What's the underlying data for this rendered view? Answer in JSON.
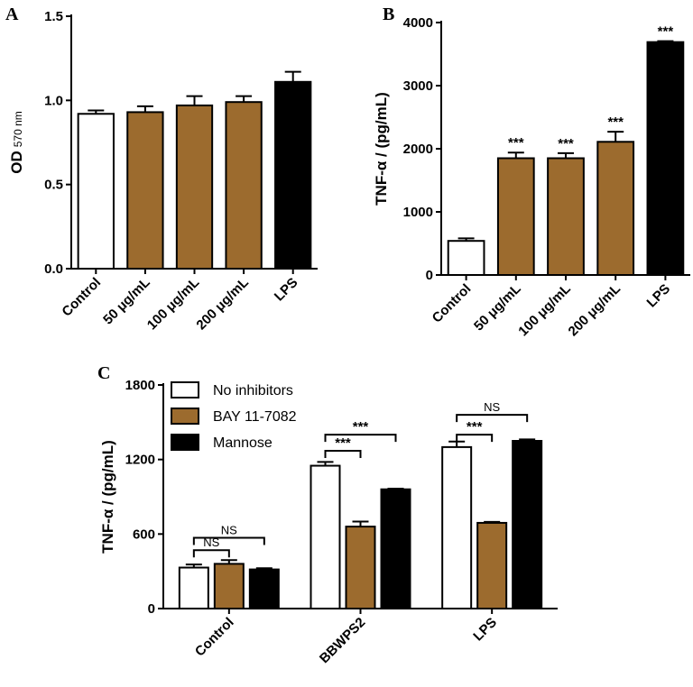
{
  "colors": {
    "white_fill": "#ffffff",
    "brown_fill": "#9c6b2e",
    "black_fill": "#000000",
    "stroke": "#000000"
  },
  "chart_data": [
    {
      "panel": "A",
      "type": "bar",
      "ylabel": "OD",
      "ylabel_sub": "570 nm",
      "ylim": [
        0,
        1.5
      ],
      "yticks": [
        0.0,
        0.5,
        1.0,
        1.5
      ],
      "ytick_labels": [
        "0.0",
        "0.5",
        "1.0",
        "1.5"
      ],
      "categories": [
        "Control",
        "50 μg/mL",
        "100 μg/mL",
        "200 μg/mL",
        "LPS"
      ],
      "values": [
        0.92,
        0.93,
        0.97,
        0.99,
        1.11
      ],
      "errors": [
        0.02,
        0.035,
        0.055,
        0.035,
        0.06
      ],
      "fills": [
        "white",
        "brown",
        "brown",
        "brown",
        "black"
      ],
      "annotations": [
        "",
        "",
        "",
        "",
        ""
      ]
    },
    {
      "panel": "B",
      "type": "bar",
      "ylabel": "TNF-α / (pg/mL)",
      "ylim": [
        0,
        4000
      ],
      "yticks": [
        0,
        1000,
        2000,
        3000,
        4000
      ],
      "ytick_labels": [
        "0",
        "1000",
        "2000",
        "3000",
        "4000"
      ],
      "categories": [
        "Control",
        "50 μg/mL",
        "100 μg/mL",
        "200 μg/mL",
        "LPS"
      ],
      "values": [
        540,
        1850,
        1850,
        2110,
        3690
      ],
      "errors": [
        40,
        90,
        80,
        160,
        15
      ],
      "fills": [
        "white",
        "brown",
        "brown",
        "brown",
        "black"
      ],
      "annotations": [
        "",
        "***",
        "***",
        "***",
        "***"
      ]
    },
    {
      "panel": "C",
      "type": "bar",
      "ylabel": "TNF-α / (pg/mL)",
      "ylim": [
        0,
        1800
      ],
      "yticks": [
        0,
        600,
        1200,
        1800
      ],
      "ytick_labels": [
        "0",
        "600",
        "1200",
        "1800"
      ],
      "categories": [
        "Control",
        "BBWPS2",
        "LPS"
      ],
      "series": [
        {
          "name": "No inhibitors",
          "fill": "white",
          "values": [
            330,
            1150,
            1300
          ],
          "errors": [
            25,
            30,
            45
          ]
        },
        {
          "name": "BAY 11-7082",
          "fill": "brown",
          "values": [
            360,
            660,
            690
          ],
          "errors": [
            30,
            40,
            8
          ]
        },
        {
          "name": "Mannose",
          "fill": "black",
          "values": [
            315,
            960,
            1350
          ],
          "errors": [
            10,
            5,
            12
          ]
        }
      ],
      "legend_position": "top-left",
      "brackets": [
        {
          "group": 0,
          "from": 0,
          "to": 1,
          "label": "NS",
          "y": 470
        },
        {
          "group": 0,
          "from": 0,
          "to": 2,
          "label": "NS",
          "y": 570
        },
        {
          "group": 1,
          "from": 0,
          "to": 1,
          "label": "***",
          "y": 1270
        },
        {
          "group": 1,
          "from": 0,
          "to": 2,
          "label": "***",
          "y": 1400
        },
        {
          "group": 2,
          "from": 0,
          "to": 1,
          "label": "***",
          "y": 1400
        },
        {
          "group": 2,
          "from": 0,
          "to": 2,
          "label": "NS",
          "y": 1560
        }
      ]
    }
  ]
}
